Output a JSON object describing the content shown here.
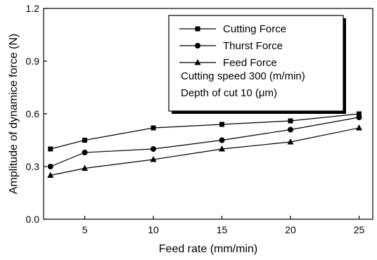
{
  "chart_data": {
    "type": "line",
    "title": "",
    "xlabel": "Feed rate (mm/min)",
    "ylabel": "Amplitude of dynamice force (N)",
    "xlim": [
      2,
      26
    ],
    "ylim": [
      0.0,
      1.2
    ],
    "x_ticks": [
      5,
      10,
      15,
      20,
      25
    ],
    "y_ticks": [
      0.0,
      0.3,
      0.6,
      0.9,
      1.2
    ],
    "y_tick_labels": [
      "0.0",
      "0.3",
      "0.6",
      "0.9",
      "1.2"
    ],
    "x": [
      2.5,
      5,
      10,
      15,
      20,
      25
    ],
    "series": [
      {
        "name": "Cutting Force",
        "marker": "square",
        "values": [
          0.4,
          0.45,
          0.52,
          0.54,
          0.56,
          0.6
        ]
      },
      {
        "name": "Thurst Force",
        "marker": "circle",
        "values": [
          0.3,
          0.38,
          0.4,
          0.45,
          0.51,
          0.58
        ]
      },
      {
        "name": "Feed Force",
        "marker": "triangle",
        "values": [
          0.25,
          0.29,
          0.34,
          0.4,
          0.44,
          0.52
        ]
      }
    ],
    "legend_position": "top-right",
    "annotations": [
      "Cutting speed 300 (m/min)",
      "Depth of cut 10 (μm)"
    ],
    "grid": false,
    "line_color": "#000000"
  }
}
